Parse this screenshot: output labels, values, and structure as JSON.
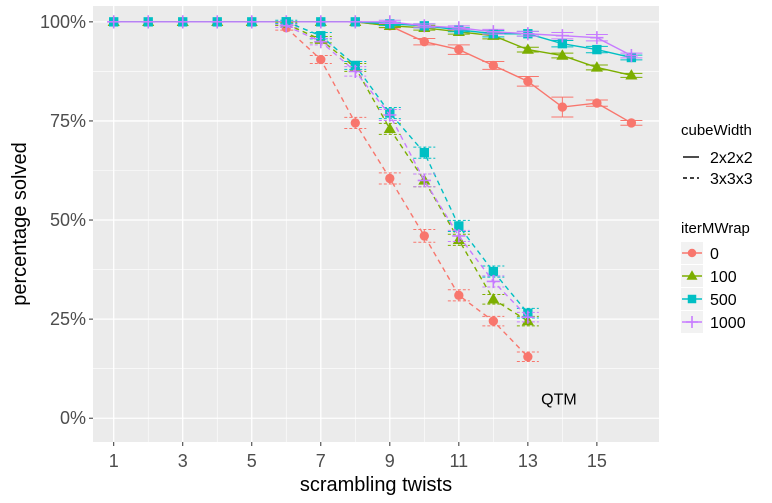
{
  "chart_data": {
    "type": "line",
    "xlabel": "scrambling twists",
    "ylabel": "percentage solved",
    "xlim": [
      0.4,
      16.8
    ],
    "ylim": [
      -0.06,
      1.04
    ],
    "x_ticks": [
      1,
      3,
      5,
      7,
      9,
      11,
      13,
      15
    ],
    "x_tick_labels": [
      "1",
      "3",
      "5",
      "7",
      "9",
      "11",
      "13",
      "15"
    ],
    "y_ticks": [
      0,
      0.25,
      0.5,
      0.75,
      1.0
    ],
    "y_tick_labels": [
      "0%",
      "25%",
      "50%",
      "75%",
      "100%"
    ],
    "grid": true,
    "annotation": "QTM",
    "annotation_at": {
      "x": 13.9,
      "y": 0.05
    },
    "legend_linetype": {
      "title": "cubeWidth",
      "entries": [
        {
          "label": "2x2x2",
          "linetype": "solid"
        },
        {
          "label": "3x3x3",
          "linetype": "dashed"
        }
      ]
    },
    "legend_color": {
      "title": "iterMWrap",
      "entries": [
        {
          "label": "0",
          "color": "#F8766D",
          "shape": "circle"
        },
        {
          "label": "100",
          "color": "#7CAE00",
          "shape": "triangle"
        },
        {
          "label": "500",
          "color": "#00BFC4",
          "shape": "square"
        },
        {
          "label": "1000",
          "color": "#C77CFF",
          "shape": "plus"
        }
      ]
    },
    "legend_placement": "right",
    "series": [
      {
        "cube": "2x2x2",
        "iter": "0",
        "color": "#F8766D",
        "shape": "circle",
        "linetype": "solid",
        "x": [
          1,
          2,
          3,
          4,
          5,
          6,
          7,
          8,
          9,
          10,
          11,
          12,
          13,
          14,
          15,
          16
        ],
        "y": [
          1.0,
          1.0,
          1.0,
          1.0,
          1.0,
          1.0,
          1.0,
          1.0,
          0.99,
          0.95,
          0.93,
          0.89,
          0.85,
          0.785,
          0.795,
          0.745
        ],
        "err": [
          0,
          0,
          0,
          0,
          0,
          0,
          0,
          0,
          0.005,
          0.008,
          0.012,
          0.01,
          0.012,
          0.025,
          0.008,
          0.006
        ]
      },
      {
        "cube": "2x2x2",
        "iter": "100",
        "color": "#7CAE00",
        "shape": "triangle",
        "linetype": "solid",
        "x": [
          1,
          2,
          3,
          4,
          5,
          6,
          7,
          8,
          9,
          10,
          11,
          12,
          13,
          14,
          15,
          16
        ],
        "y": [
          1.0,
          1.0,
          1.0,
          1.0,
          1.0,
          1.0,
          1.0,
          1.0,
          0.99,
          0.985,
          0.975,
          0.965,
          0.93,
          0.915,
          0.885,
          0.865
        ],
        "err": [
          0,
          0,
          0,
          0,
          0,
          0,
          0,
          0,
          0.004,
          0.006,
          0.006,
          0.008,
          0.006,
          0.006,
          0.006,
          0.005
        ]
      },
      {
        "cube": "2x2x2",
        "iter": "500",
        "color": "#00BFC4",
        "shape": "square",
        "linetype": "solid",
        "x": [
          1,
          2,
          3,
          4,
          5,
          6,
          7,
          8,
          9,
          10,
          11,
          12,
          13,
          14,
          15,
          16
        ],
        "y": [
          1.0,
          1.0,
          1.0,
          1.0,
          1.0,
          1.0,
          1.0,
          1.0,
          0.995,
          0.99,
          0.98,
          0.97,
          0.97,
          0.945,
          0.93,
          0.91
        ],
        "err": [
          0,
          0,
          0,
          0,
          0,
          0,
          0,
          0,
          0.004,
          0.005,
          0.005,
          0.008,
          0.006,
          0.008,
          0.008,
          0.006
        ]
      },
      {
        "cube": "2x2x2",
        "iter": "1000",
        "color": "#C77CFF",
        "shape": "plus",
        "linetype": "solid",
        "x": [
          1,
          2,
          3,
          4,
          5,
          6,
          7,
          8,
          9,
          10,
          11,
          12,
          13,
          14,
          15,
          16
        ],
        "y": [
          1.0,
          1.0,
          1.0,
          1.0,
          1.0,
          1.0,
          1.0,
          1.0,
          1.0,
          0.99,
          0.985,
          0.975,
          0.97,
          0.965,
          0.96,
          0.915
        ],
        "err": [
          0,
          0,
          0,
          0,
          0,
          0,
          0,
          0,
          0.004,
          0.005,
          0.005,
          0.006,
          0.006,
          0.008,
          0.008,
          0.006
        ]
      },
      {
        "cube": "3x3x3",
        "iter": "0",
        "color": "#F8766D",
        "shape": "circle",
        "linetype": "dashed",
        "x": [
          6,
          7,
          8,
          9,
          10,
          11,
          12,
          13
        ],
        "y": [
          0.985,
          0.905,
          0.745,
          0.605,
          0.46,
          0.31,
          0.245,
          0.155
        ],
        "err": [
          0.006,
          0.01,
          0.014,
          0.014,
          0.016,
          0.014,
          0.012,
          0.012
        ]
      },
      {
        "cube": "3x3x3",
        "iter": "100",
        "color": "#7CAE00",
        "shape": "triangle",
        "linetype": "dashed",
        "x": [
          6,
          7,
          8,
          9,
          10,
          11,
          12,
          13
        ],
        "y": [
          0.995,
          0.955,
          0.885,
          0.73,
          0.6,
          0.45,
          0.3,
          0.245
        ],
        "err": [
          0.004,
          0.008,
          0.01,
          0.014,
          0.016,
          0.014,
          0.012,
          0.012
        ]
      },
      {
        "cube": "3x3x3",
        "iter": "500",
        "color": "#00BFC4",
        "shape": "square",
        "linetype": "dashed",
        "x": [
          6,
          7,
          8,
          9,
          10,
          11,
          12,
          13
        ],
        "y": [
          1.0,
          0.965,
          0.89,
          0.77,
          0.67,
          0.485,
          0.37,
          0.265
        ],
        "err": [
          0.004,
          0.008,
          0.01,
          0.014,
          0.014,
          0.014,
          0.014,
          0.012
        ]
      },
      {
        "cube": "3x3x3",
        "iter": "1000",
        "color": "#C77CFF",
        "shape": "plus",
        "linetype": "dashed",
        "x": [
          6,
          7,
          8,
          9,
          10,
          11,
          12,
          13
        ],
        "y": [
          0.99,
          0.95,
          0.875,
          0.765,
          0.6,
          0.46,
          0.345,
          0.255
        ],
        "err": [
          0.004,
          0.008,
          0.012,
          0.014,
          0.016,
          0.014,
          0.014,
          0.012
        ]
      }
    ]
  }
}
